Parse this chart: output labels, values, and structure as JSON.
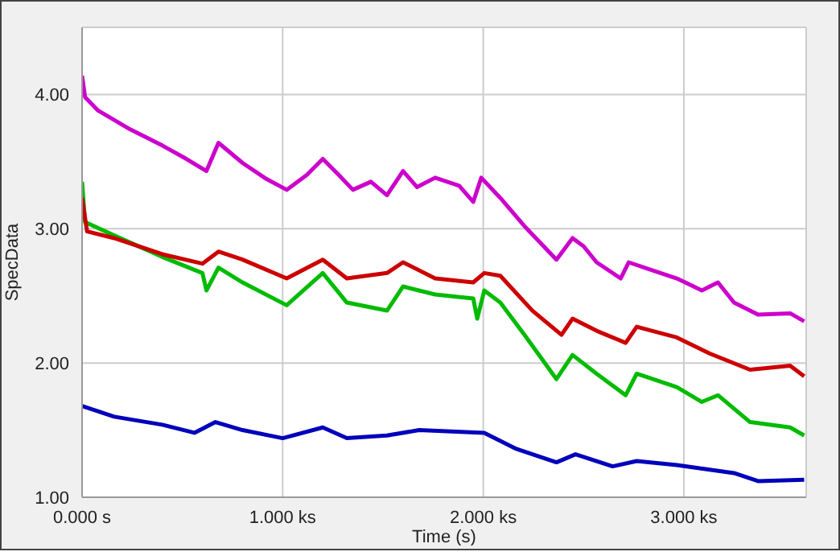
{
  "chart_data": {
    "type": "line",
    "xlabel": "Time (s)",
    "ylabel": "SpecData",
    "xlim": [
      0,
      3.61
    ],
    "ylim": [
      1,
      4.5
    ],
    "xticks": [
      {
        "value": 0,
        "label": "0.000 s"
      },
      {
        "value": 1,
        "label": "1.000 ks"
      },
      {
        "value": 2,
        "label": "2.000 ks"
      },
      {
        "value": 3,
        "label": "3.000 ks"
      }
    ],
    "yticks": [
      {
        "value": 1,
        "label": "1.00"
      },
      {
        "value": 2,
        "label": "2.00"
      },
      {
        "value": 3,
        "label": "3.00"
      },
      {
        "value": 4,
        "label": "4.00"
      }
    ],
    "grid": true,
    "line_style": "solid",
    "series": [
      {
        "color": "#cc00cc",
        "x": [
          0,
          0.015,
          0.08,
          0.24,
          0.4,
          0.52,
          0.62,
          0.68,
          0.8,
          0.92,
          1.02,
          1.12,
          1.2,
          1.28,
          1.35,
          1.44,
          1.52,
          1.6,
          1.67,
          1.76,
          1.88,
          1.95,
          1.99,
          2.085,
          2.205,
          2.365,
          2.445,
          2.5,
          2.565,
          2.685,
          2.725,
          2.845,
          2.965,
          3.09,
          3.17,
          3.25,
          3.37,
          3.53,
          3.6
        ],
        "values": [
          4.14,
          3.98,
          3.88,
          3.74,
          3.62,
          3.52,
          3.43,
          3.64,
          3.49,
          3.37,
          3.29,
          3.4,
          3.52,
          3.4,
          3.29,
          3.35,
          3.25,
          3.43,
          3.31,
          3.38,
          3.32,
          3.2,
          3.38,
          3.23,
          3.02,
          2.77,
          2.93,
          2.87,
          2.75,
          2.63,
          2.75,
          2.69,
          2.63,
          2.54,
          2.6,
          2.45,
          2.36,
          2.37,
          2.31
        ]
      },
      {
        "color": "#cc0000",
        "x": [
          0,
          0.025,
          0.16,
          0.4,
          0.6,
          0.68,
          0.8,
          1.02,
          1.2,
          1.32,
          1.52,
          1.6,
          1.76,
          1.95,
          2.005,
          2.085,
          2.245,
          2.39,
          2.445,
          2.565,
          2.71,
          2.765,
          2.965,
          3.13,
          3.33,
          3.53,
          3.6
        ],
        "values": [
          3.23,
          2.98,
          2.93,
          2.81,
          2.74,
          2.83,
          2.77,
          2.63,
          2.77,
          2.63,
          2.67,
          2.75,
          2.63,
          2.6,
          2.67,
          2.65,
          2.39,
          2.21,
          2.33,
          2.24,
          2.15,
          2.27,
          2.19,
          2.07,
          1.95,
          1.98,
          1.9
        ]
      },
      {
        "color": "#00bb00",
        "x": [
          0,
          0.015,
          0.16,
          0.4,
          0.6,
          0.62,
          0.68,
          0.8,
          1.02,
          1.2,
          1.32,
          1.52,
          1.6,
          1.76,
          1.95,
          1.97,
          2.005,
          2.085,
          2.205,
          2.365,
          2.445,
          2.565,
          2.71,
          2.765,
          2.965,
          3.09,
          3.17,
          3.33,
          3.53,
          3.6
        ],
        "values": [
          3.35,
          3.05,
          2.95,
          2.79,
          2.67,
          2.54,
          2.71,
          2.6,
          2.43,
          2.67,
          2.45,
          2.39,
          2.57,
          2.51,
          2.48,
          2.33,
          2.54,
          2.45,
          2.21,
          1.88,
          2.06,
          1.92,
          1.76,
          1.92,
          1.82,
          1.71,
          1.76,
          1.56,
          1.52,
          1.46
        ]
      },
      {
        "color": "#0000bb",
        "x": [
          0,
          0.16,
          0.4,
          0.56,
          0.665,
          0.8,
          1,
          1.2,
          1.32,
          1.52,
          1.68,
          2.005,
          2.165,
          2.365,
          2.46,
          2.645,
          2.765,
          2.965,
          3.25,
          3.37,
          3.6
        ],
        "values": [
          1.68,
          1.6,
          1.54,
          1.48,
          1.56,
          1.5,
          1.44,
          1.52,
          1.44,
          1.46,
          1.5,
          1.48,
          1.36,
          1.26,
          1.32,
          1.23,
          1.27,
          1.24,
          1.18,
          1.12,
          1.13
        ]
      }
    ]
  }
}
